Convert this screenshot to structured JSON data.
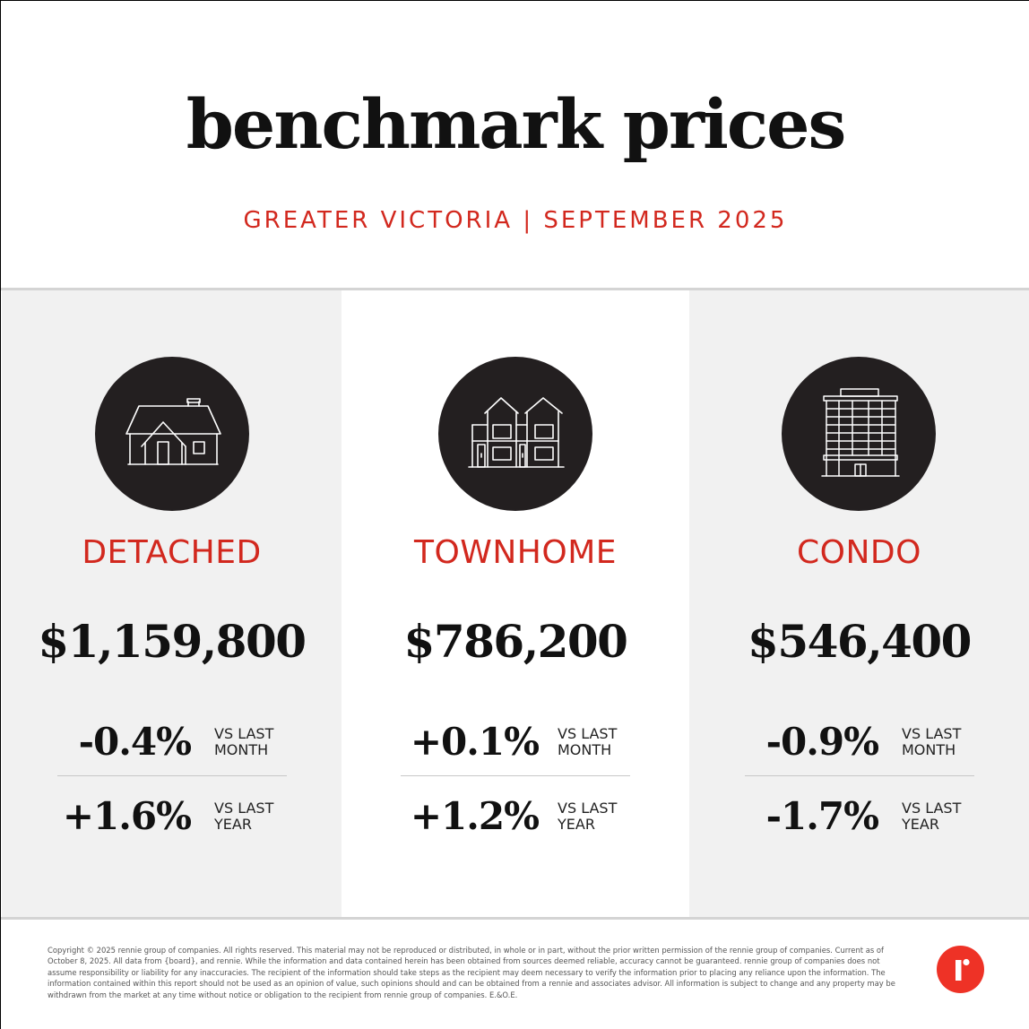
{
  "header": {
    "title": "benchmark prices",
    "subtitle": "GREATER VICTORIA | SEPTEMBER 2025"
  },
  "colors": {
    "accent_red": "#d2281e",
    "badge_dark": "#231f20",
    "panel_gray": "#f1f1f1",
    "logo_red": "#ee3226"
  },
  "property_types": [
    {
      "icon": "detached-house-icon",
      "label": "DETACHED",
      "price": "$1,159,800",
      "month_change": "-0.4%",
      "month_caption_line1": "VS LAST",
      "month_caption_line2": "MONTH",
      "year_change": "+1.6%",
      "year_caption_line1": "VS LAST",
      "year_caption_line2": "YEAR"
    },
    {
      "icon": "townhome-icon",
      "label": "TOWNHOME",
      "price": "$786,200",
      "month_change": "+0.1%",
      "month_caption_line1": "VS LAST",
      "month_caption_line2": "MONTH",
      "year_change": "+1.2%",
      "year_caption_line1": "VS LAST",
      "year_caption_line2": "YEAR"
    },
    {
      "icon": "condo-building-icon",
      "label": "CONDO",
      "price": "$546,400",
      "month_change": "-0.9%",
      "month_caption_line1": "VS LAST",
      "month_caption_line2": "MONTH",
      "year_change": "-1.7%",
      "year_caption_line1": "VS LAST",
      "year_caption_line2": "YEAR"
    }
  ],
  "footer": {
    "disclaimer": "Copyright © 2025 rennie group of companies. All rights reserved. This material may not be reproduced or distributed, in whole or in part, without the prior written permission of the rennie group of companies. Current as of October 8, 2025. All data from {board}, and rennie. While the information and data contained herein has been obtained from sources deemed reliable, accuracy cannot be guaranteed. rennie group of companies does not assume responsibility or liability for any inaccuracies. The recipient of the information should take steps as the recipient may deem necessary to verify the information prior to placing any reliance upon the information. The information contained within this report should not be used as an opinion of value, such opinions should and can be obtained from a rennie and associates advisor. All information is subject to change and any property may be withdrawn from the market at any time without notice or obligation to the recipient from rennie group of companies. E.&O.E.",
    "logo_icon": "rennie-logo-icon"
  }
}
